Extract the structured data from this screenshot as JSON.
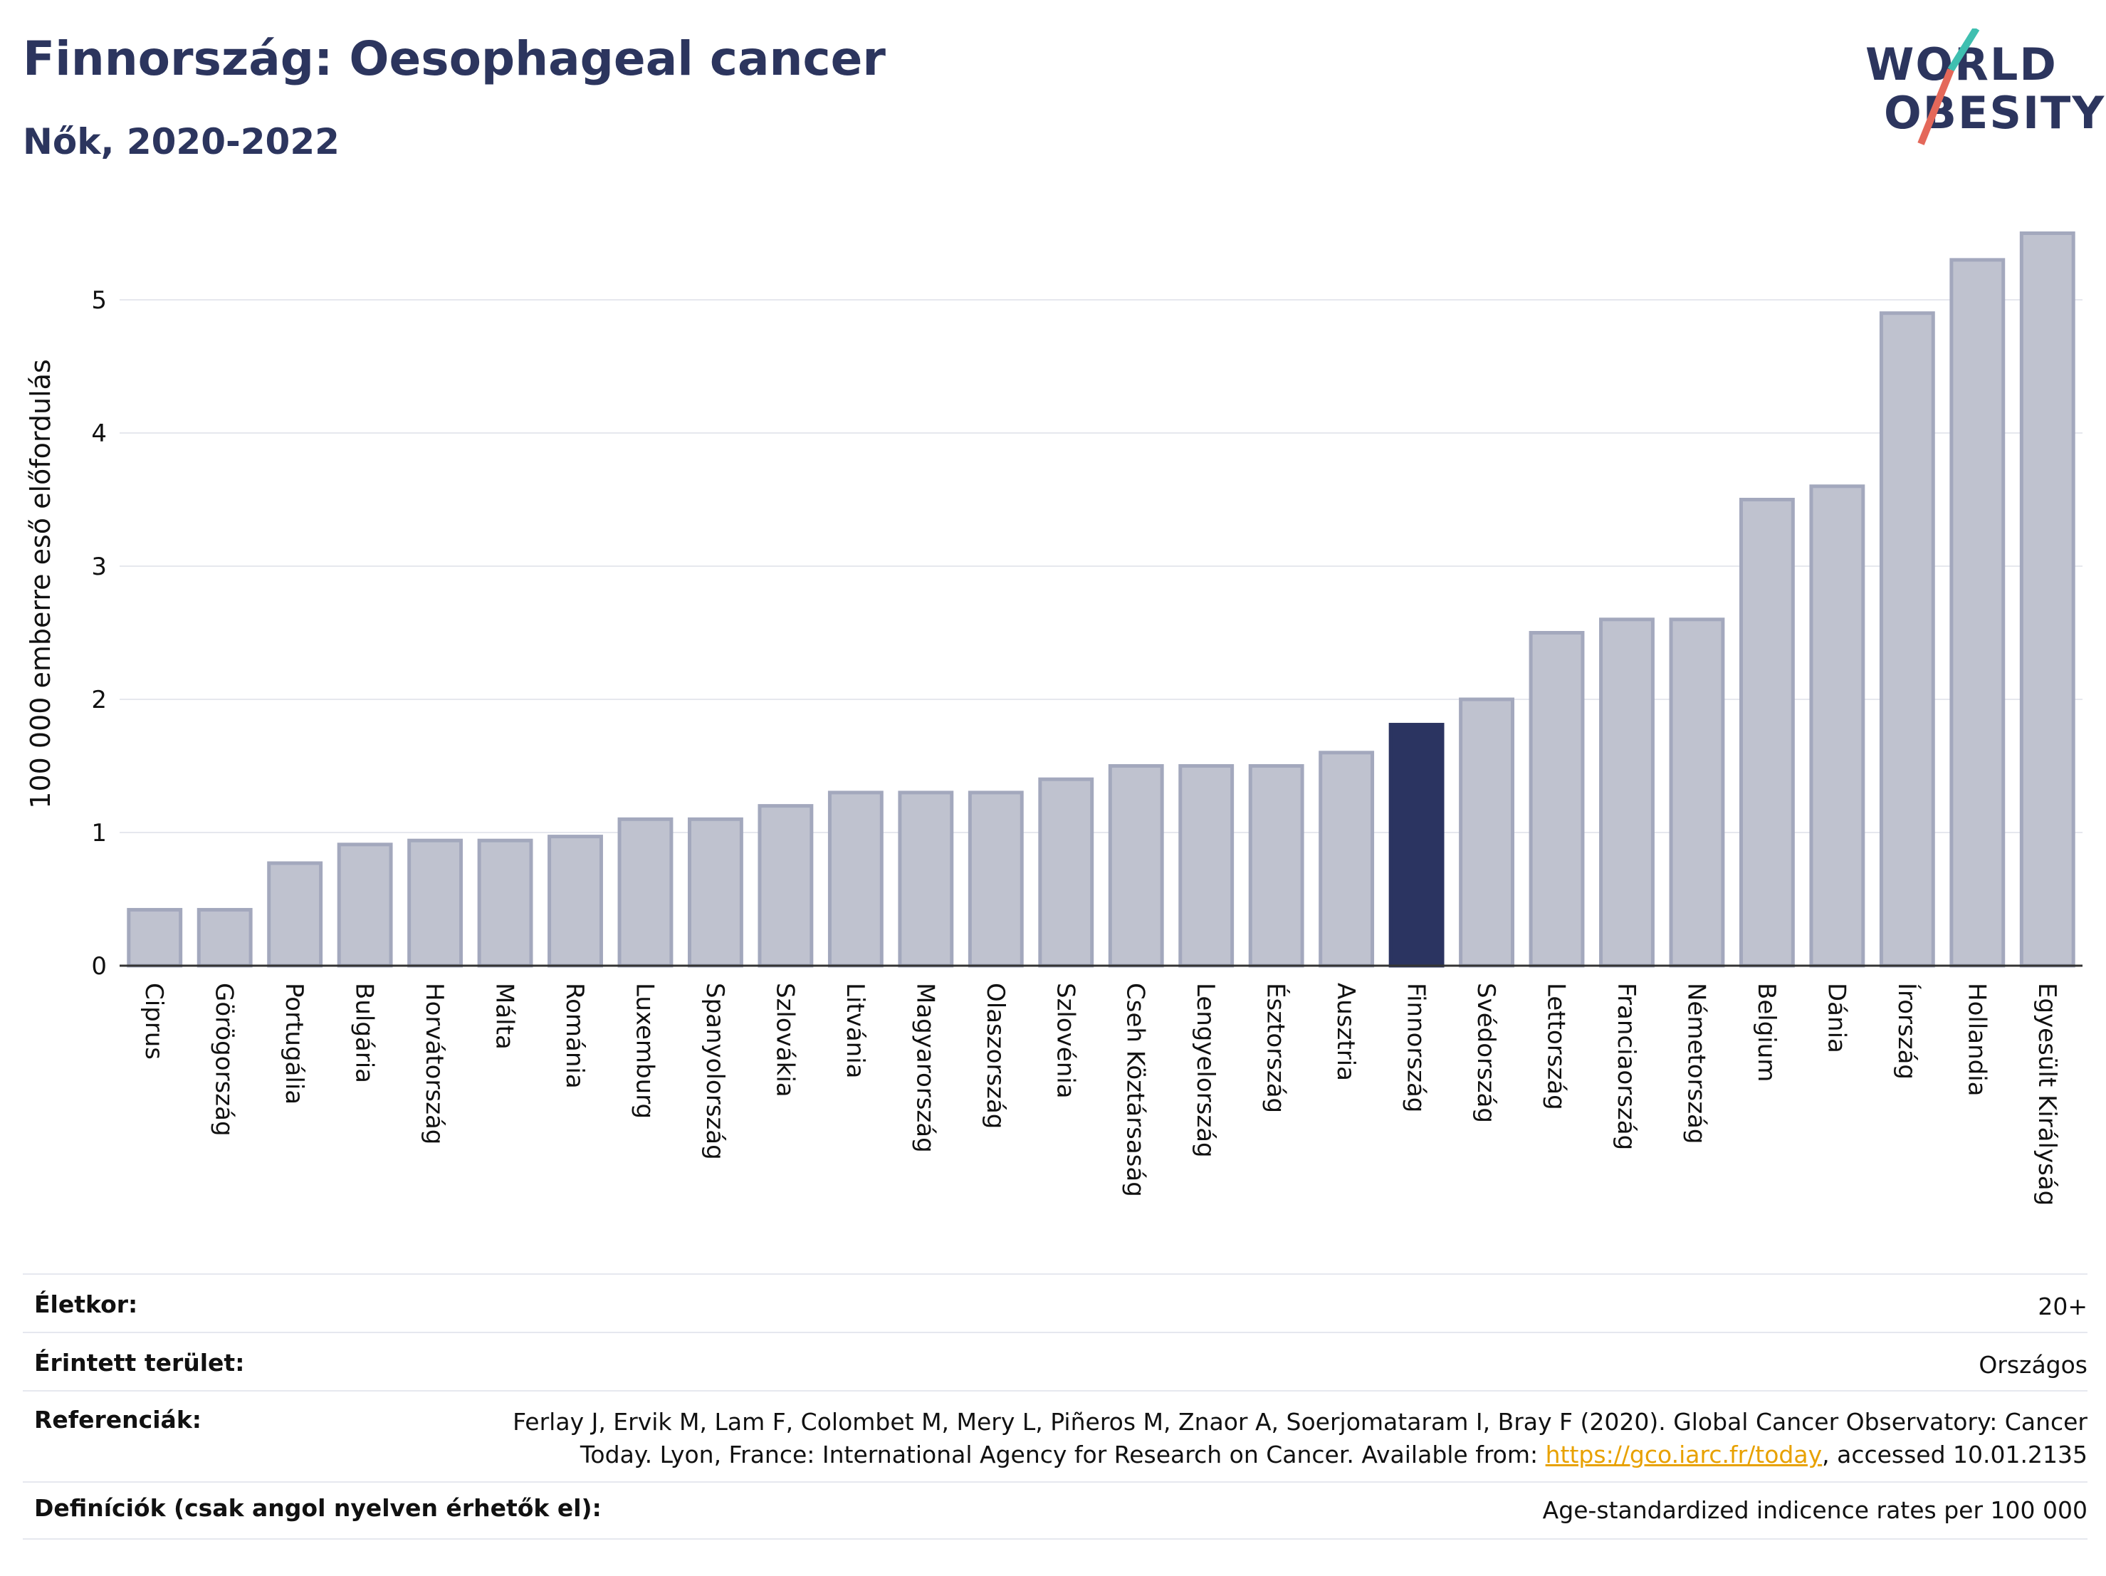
{
  "header": {
    "title": "Finnország: Oesophageal cancer",
    "subtitle": "Nők, 2020-2022"
  },
  "logo": {
    "line1": "WORLD",
    "line2": "OBESITY",
    "icon": "world-obesity-logo-slash"
  },
  "colors": {
    "bar": "#bfc2cf",
    "bar_stroke": "#a3a8bd",
    "highlight": "#2b3461",
    "text": "#2c355e",
    "link": "#e8a100"
  },
  "chart_data": {
    "type": "bar",
    "ylabel": "100 000 emberre eső előfordulás",
    "ylim": [
      0,
      5.6
    ],
    "yticks": [
      0,
      1,
      2,
      3,
      4,
      5
    ],
    "grid": true,
    "highlight": "Finnország",
    "categories": [
      "Ciprus",
      "Görögország",
      "Portugália",
      "Bulgária",
      "Horvátország",
      "Málta",
      "Románia",
      "Luxemburg",
      "Spanyolország",
      "Szlovákia",
      "Litvánia",
      "Magyarország",
      "Olaszország",
      "Szlovénia",
      "Cseh Köztársaság",
      "Lengyelország",
      "Észtország",
      "Ausztria",
      "Finnország",
      "Svédország",
      "Lettország",
      "Franciaország",
      "Németország",
      "Belgium",
      "Dánia",
      "Írország",
      "Hollandia",
      "Egyesült Királyság"
    ],
    "values": [
      0.42,
      0.42,
      0.77,
      0.91,
      0.94,
      0.94,
      0.97,
      1.1,
      1.1,
      1.2,
      1.3,
      1.3,
      1.3,
      1.4,
      1.5,
      1.5,
      1.5,
      1.6,
      1.81,
      2.0,
      2.5,
      2.6,
      2.6,
      3.5,
      3.6,
      4.9,
      5.3,
      5.5
    ]
  },
  "info": {
    "age_label": "Életkor:",
    "age_value": "20+",
    "area_label": "Érintett terület:",
    "area_value": "Országos",
    "ref_label": "Referenciák:",
    "ref_line1": "Ferlay J, Ervik M, Lam F, Colombet M, Mery L, Piñeros M, Znaor A, Soerjomataram I, Bray F (2020). Global Cancer Observatory: Cancer",
    "ref_line2_pre": "Today. Lyon, France: International Agency for Research on Cancer. Available from: ",
    "ref_link": "https://gco.iarc.fr/today",
    "ref_line2_post": ", accessed 10.01.2135",
    "def_label": "Definíciók (csak angol nyelven érhetők el):",
    "def_value": "Age-standardized indicence rates per 100 000"
  }
}
